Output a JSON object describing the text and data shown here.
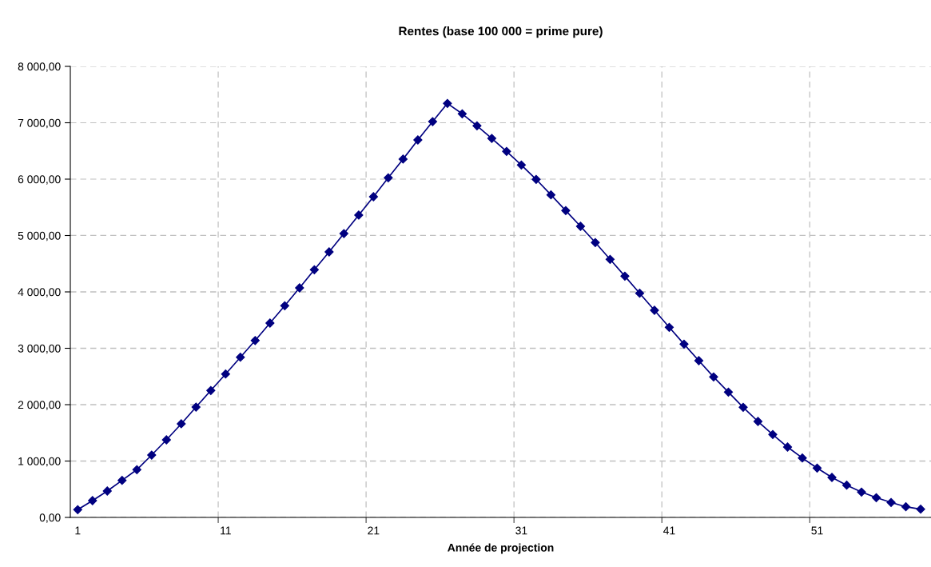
{
  "chart_data": {
    "type": "line",
    "title": "Rentes (base 100 000 = prime pure)",
    "xlabel": "Année de projection",
    "categories": [
      "1",
      null,
      null,
      null,
      null,
      null,
      null,
      null,
      null,
      null,
      "11",
      null,
      null,
      null,
      null,
      null,
      null,
      null,
      null,
      null,
      "21",
      null,
      null,
      null,
      null,
      null,
      null,
      null,
      null,
      null,
      "31",
      null,
      null,
      null,
      null,
      null,
      null,
      null,
      null,
      null,
      "41",
      null,
      null,
      null,
      null,
      null,
      null,
      null,
      null,
      null,
      "51",
      null,
      null,
      null,
      null,
      null,
      null,
      null
    ],
    "series": [
      {
        "color": "#000080",
        "values": [
          138,
          298,
          468,
          657,
          847,
          1106,
          1376,
          1660,
          1957,
          2251,
          2543,
          2841,
          3138,
          3447,
          3755,
          4071,
          4393,
          4709,
          5035,
          5362,
          5688,
          6024,
          6355,
          6695,
          7021,
          7343,
          7159,
          6946,
          6723,
          6492,
          6251,
          5996,
          5721,
          5442,
          5163,
          4875,
          4577,
          4279,
          3976,
          3674,
          3372,
          3073,
          2780,
          2492,
          2222,
          1953,
          1702,
          1470,
          1248,
          1054,
          875,
          709,
          572,
          450,
          350,
          265,
          189,
          146
        ]
      }
    ],
    "ylim": [
      0,
      8000
    ],
    "yticks": [
      {
        "value": 0,
        "label": "0,00"
      },
      {
        "value": 1000,
        "label": "1 000,00"
      },
      {
        "value": 2000,
        "label": "2 000,00"
      },
      {
        "value": 3000,
        "label": "3 000,00"
      },
      {
        "value": 4000,
        "label": "4 000,00"
      },
      {
        "value": 5000,
        "label": "5 000,00"
      },
      {
        "value": 6000,
        "label": "6 000,00"
      },
      {
        "value": 7000,
        "label": "7 000,00"
      },
      {
        "value": 8000,
        "label": "8 000,00"
      }
    ],
    "grid": true,
    "marker": "diamond",
    "line_style": "solid"
  }
}
